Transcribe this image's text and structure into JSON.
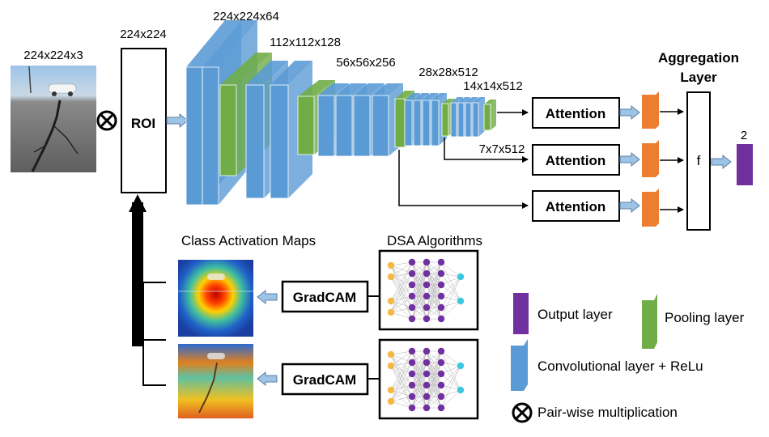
{
  "input": {
    "dims": "224x224x3"
  },
  "roi": {
    "dims": "224x224",
    "label": "ROI"
  },
  "blocks": [
    {
      "dims": "224x224x64"
    },
    {
      "dims": "112x112x128"
    },
    {
      "dims": "56x56x256"
    },
    {
      "dims": "28x28x512"
    },
    {
      "dims": "14x14x512"
    },
    {
      "dims": "7x7x512"
    }
  ],
  "attention": {
    "label": "Attention"
  },
  "aggregation": {
    "title_line1": "Aggregation",
    "title_line2": "Layer",
    "func": "f"
  },
  "output": {
    "size": "2"
  },
  "cam": {
    "title": "Class Activation Maps"
  },
  "dsa": {
    "title": "DSA Algorithms"
  },
  "gradcam": {
    "label": "GradCAM"
  },
  "legend": {
    "output": "Output layer",
    "pooling": "Pooling layer",
    "conv": "Convolutional layer + ReLu",
    "mult": "Pair-wise multiplication"
  },
  "colors": {
    "conv": "#5B9BD5",
    "pool": "#70AD47",
    "output": "#7030A0",
    "attn_out": "#ED7D31",
    "arrow": "#9DC3E6"
  }
}
